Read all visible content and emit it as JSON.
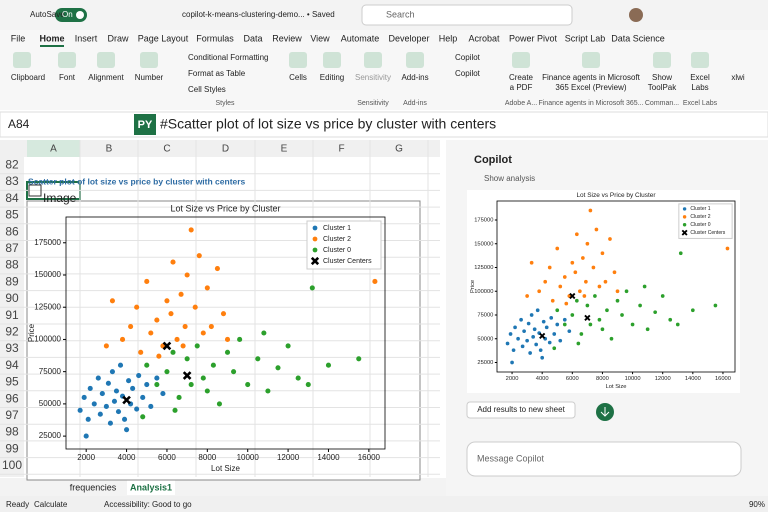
{
  "title_bar": {
    "autosave": "AutoSave",
    "toggle": "On",
    "filename": "copilot-k-means-clustering-demo... • Saved",
    "search": "Search"
  },
  "menu": [
    "File",
    "Home",
    "Insert",
    "Draw",
    "Page Layout",
    "Formulas",
    "Data",
    "Review",
    "View",
    "Automate",
    "Developer",
    "Help",
    "Acrobat",
    "Power Pivot",
    "Script Lab",
    "Data Science"
  ],
  "ribbon": {
    "clipboard": "Clipboard",
    "font": "Font",
    "alignment": "Alignment",
    "number": "Number",
    "conditional_formatting": "Conditional Formatting",
    "format_as_table": "Format as Table",
    "cell_styles": "Cell Styles",
    "styles": "Styles",
    "cells": "Cells",
    "editing": "Editing",
    "sensitivity": "Sensitivity",
    "sensitivity_group": "Sensitivity",
    "addins": "Add-ins",
    "addins_group": "Add-ins",
    "copilot_1": "Copilot",
    "copilot_2": "Copilot",
    "create_pdf": [
      "Create",
      "a PDF"
    ],
    "adobe_group": "Adobe A...",
    "finance": [
      "Finance agents in Microsoft",
      "365 Excel (Preview)"
    ],
    "finance_group": "Finance agents in Microsoft 365...",
    "toolpak": [
      "Show",
      "ToolPak"
    ],
    "toolpak_group": "Comman...",
    "excel_labs": [
      "Excel",
      "Labs"
    ],
    "excel_labs_group": "Excel Labs",
    "xlwings": "xlwi"
  },
  "formula_bar": {
    "name_box": "A84",
    "py": "PY",
    "formula": "#Scatter plot of lot size vs price by cluster with centers"
  },
  "sheet": {
    "columns": [
      "A",
      "B",
      "C",
      "D",
      "E",
      "F",
      "G"
    ],
    "rows": [
      "82",
      "83",
      "84",
      "85",
      "86",
      "87",
      "88",
      "89",
      "90",
      "91",
      "92",
      "93",
      "94",
      "95",
      "96",
      "97",
      "98",
      "99",
      "100"
    ],
    "a83": "Scatter plot of lot size vs price by cluster with centers",
    "a84": "Image"
  },
  "sheet_tabs": [
    "frequencies",
    "Analysis1"
  ],
  "status_bar": {
    "ready": "Ready",
    "calculate": "Calculate",
    "accessibility": "Accessibility: Good to go",
    "zoom": "90%"
  },
  "copilot": {
    "title": "Copilot",
    "show_analysis": "Show analysis",
    "add_results": "Add results to new sheet",
    "message": "Message Copilot"
  },
  "chart_data": {
    "type": "scatter",
    "title": "Lot Size vs Price by Cluster",
    "x_label": "Lot Size",
    "y_label": "Price",
    "xlim": [
      1000,
      16800
    ],
    "ylim": [
      15000,
      195000
    ],
    "xticks": [
      2000,
      4000,
      6000,
      8000,
      10000,
      12000,
      14000,
      16000
    ],
    "yticks": [
      25000,
      50000,
      75000,
      100000,
      125000,
      150000,
      175000
    ],
    "legend": "upper right",
    "series": [
      {
        "name": "Cluster 1",
        "color": "#1f77b4",
        "marker": "dot",
        "x": [
          1700,
          1900,
          2100,
          2200,
          2400,
          2600,
          2700,
          2800,
          3000,
          3100,
          3200,
          3300,
          3400,
          3500,
          3600,
          3700,
          3800,
          3900,
          4100,
          4200,
          4300,
          4500,
          4600,
          4800,
          5000,
          5200,
          5500,
          5800,
          2000,
          4000
        ],
        "values": [
          45000,
          55000,
          38000,
          62000,
          50000,
          70000,
          42000,
          58000,
          48000,
          66000,
          35000,
          75000,
          52000,
          60000,
          44000,
          80000,
          56000,
          38000,
          68000,
          50000,
          62000,
          46000,
          72000,
          55000,
          65000,
          48000,
          70000,
          58000,
          25000,
          30000
        ]
      },
      {
        "name": "Cluster 2",
        "color": "#ff7f0e",
        "marker": "dot",
        "x": [
          3000,
          3300,
          3800,
          4200,
          4500,
          4700,
          5000,
          5200,
          5500,
          5800,
          6000,
          6200,
          6300,
          6500,
          6700,
          6900,
          7000,
          7200,
          7400,
          7600,
          7800,
          8000,
          8200,
          8500,
          8800,
          9000,
          16300,
          5600,
          6800
        ],
        "values": [
          95000,
          130000,
          100000,
          110000,
          125000,
          90000,
          145000,
          105000,
          115000,
          95000,
          130000,
          120000,
          160000,
          100000,
          135000,
          110000,
          150000,
          185000,
          125000,
          165000,
          105000,
          140000,
          110000,
          155000,
          120000,
          100000,
          145000,
          87000,
          95000
        ]
      },
      {
        "name": "Cluster 0",
        "color": "#2ca02c",
        "marker": "dot",
        "x": [
          5000,
          5500,
          6000,
          6300,
          6600,
          7000,
          7200,
          7500,
          7800,
          8000,
          8300,
          8600,
          9000,
          9300,
          9600,
          10000,
          10500,
          11000,
          11500,
          12000,
          12500,
          13000,
          13200,
          14000,
          15500,
          6400,
          10800,
          4800
        ],
        "values": [
          80000,
          65000,
          75000,
          90000,
          55000,
          85000,
          65000,
          95000,
          70000,
          60000,
          80000,
          50000,
          90000,
          75000,
          100000,
          65000,
          85000,
          60000,
          78000,
          95000,
          70000,
          65000,
          140000,
          80000,
          85000,
          45000,
          105000,
          40000
        ]
      },
      {
        "name": "Cluster Centers",
        "color": "#000000",
        "marker": "x",
        "x": [
          4000,
          6000,
          7000
        ],
        "values": [
          53000,
          95000,
          72000
        ]
      }
    ]
  }
}
